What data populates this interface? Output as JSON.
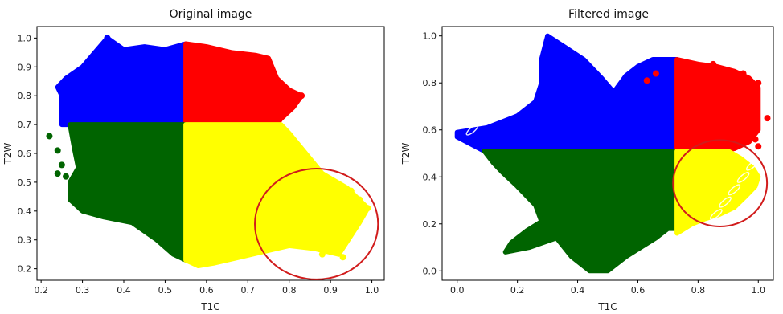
{
  "chart_data": [
    {
      "type": "scatter",
      "title": "Original image",
      "xlabel": "T1C",
      "ylabel": "T2W",
      "xlim": [
        0.19,
        1.03
      ],
      "ylim": [
        0.16,
        1.04
      ],
      "xticks": [
        "0.2",
        "0.3",
        "0.4",
        "0.5",
        "0.6",
        "0.7",
        "0.8",
        "0.9",
        "1.0"
      ],
      "yticks": [
        "0.2",
        "0.3",
        "0.4",
        "0.5",
        "0.6",
        "0.7",
        "0.8",
        "0.9",
        "1.0"
      ],
      "grid": false,
      "colors": {
        "blue": "#0000ff",
        "red": "#ff0000",
        "green": "#006400",
        "yellow": "#ffff00",
        "highlight": "#d11c1c"
      },
      "regions": [
        {
          "color": "blue",
          "outline": [
            [
              0.25,
              0.7
            ],
            [
              0.25,
              0.8
            ],
            [
              0.24,
              0.83
            ],
            [
              0.26,
              0.86
            ],
            [
              0.3,
              0.9
            ],
            [
              0.33,
              0.95
            ],
            [
              0.36,
              1.0
            ],
            [
              0.4,
              0.96
            ],
            [
              0.45,
              0.97
            ],
            [
              0.5,
              0.96
            ],
            [
              0.55,
              0.98
            ],
            [
              0.55,
              0.7
            ]
          ]
        },
        {
          "color": "red",
          "outline": [
            [
              0.55,
              0.7
            ],
            [
              0.55,
              0.98
            ],
            [
              0.6,
              0.97
            ],
            [
              0.66,
              0.95
            ],
            [
              0.72,
              0.94
            ],
            [
              0.75,
              0.93
            ],
            [
              0.77,
              0.86
            ],
            [
              0.8,
              0.82
            ],
            [
              0.83,
              0.8
            ],
            [
              0.81,
              0.76
            ],
            [
              0.78,
              0.72
            ],
            [
              0.77,
              0.7
            ]
          ]
        },
        {
          "color": "green",
          "outline": [
            [
              0.27,
              0.7
            ],
            [
              0.28,
              0.62
            ],
            [
              0.29,
              0.55
            ],
            [
              0.27,
              0.5
            ],
            [
              0.27,
              0.44
            ],
            [
              0.3,
              0.4
            ],
            [
              0.35,
              0.38
            ],
            [
              0.42,
              0.36
            ],
            [
              0.48,
              0.3
            ],
            [
              0.52,
              0.25
            ],
            [
              0.55,
              0.23
            ],
            [
              0.55,
              0.7
            ]
          ]
        },
        {
          "color": "yellow",
          "outline": [
            [
              0.55,
              0.7
            ],
            [
              0.55,
              0.23
            ],
            [
              0.58,
              0.21
            ],
            [
              0.62,
              0.22
            ],
            [
              0.68,
              0.24
            ],
            [
              0.74,
              0.26
            ],
            [
              0.8,
              0.28
            ],
            [
              0.86,
              0.27
            ],
            [
              0.92,
              0.25
            ],
            [
              0.97,
              0.36
            ],
            [
              0.99,
              0.41
            ],
            [
              0.94,
              0.48
            ],
            [
              0.88,
              0.53
            ],
            [
              0.84,
              0.6
            ],
            [
              0.8,
              0.67
            ],
            [
              0.78,
              0.7
            ]
          ]
        }
      ],
      "scatter_points": [
        {
          "color": "green",
          "x": 0.22,
          "y": 0.66
        },
        {
          "color": "green",
          "x": 0.24,
          "y": 0.61
        },
        {
          "color": "green",
          "x": 0.25,
          "y": 0.56
        },
        {
          "color": "green",
          "x": 0.24,
          "y": 0.53
        },
        {
          "color": "green",
          "x": 0.26,
          "y": 0.52
        },
        {
          "color": "blue",
          "x": 0.36,
          "y": 1.0
        },
        {
          "color": "yellow",
          "x": 0.95,
          "y": 0.47
        },
        {
          "color": "yellow",
          "x": 0.97,
          "y": 0.44
        },
        {
          "color": "yellow",
          "x": 0.99,
          "y": 0.41
        },
        {
          "color": "yellow",
          "x": 0.93,
          "y": 0.24
        },
        {
          "color": "yellow",
          "x": 0.88,
          "y": 0.25
        },
        {
          "color": "yellow",
          "x": 0.86,
          "y": 0.33
        },
        {
          "color": "yellow",
          "x": 0.9,
          "y": 0.4
        },
        {
          "color": "yellow",
          "x": 0.84,
          "y": 0.38
        },
        {
          "color": "red",
          "x": 0.83,
          "y": 0.8
        }
      ],
      "annotation": {
        "type": "ellipse",
        "center": [
          0.866,
          0.355
        ],
        "rx": 0.149,
        "ry": 0.192,
        "color": "highlight"
      }
    },
    {
      "type": "scatter",
      "title": "Filtered image",
      "xlabel": "T1C",
      "ylabel": "T2W",
      "xlim": [
        -0.05,
        1.05
      ],
      "ylim": [
        -0.04,
        1.04
      ],
      "xticks": [
        "0.0",
        "0.2",
        "0.4",
        "0.6",
        "0.8",
        "1.0"
      ],
      "yticks": [
        "0.0",
        "0.2",
        "0.4",
        "0.6",
        "0.8",
        "1.0"
      ],
      "grid": false,
      "colors": {
        "blue": "#0000ff",
        "red": "#ff0000",
        "green": "#006400",
        "yellow": "#ffff00",
        "highlight": "#d11c1c"
      },
      "regions": [
        {
          "color": "blue",
          "outline": [
            [
              0.09,
              0.51
            ],
            [
              0.0,
              0.57
            ],
            [
              0.0,
              0.59
            ],
            [
              0.1,
              0.61
            ],
            [
              0.2,
              0.66
            ],
            [
              0.26,
              0.72
            ],
            [
              0.28,
              0.8
            ],
            [
              0.28,
              0.9
            ],
            [
              0.3,
              1.0
            ],
            [
              0.36,
              0.95
            ],
            [
              0.42,
              0.9
            ],
            [
              0.48,
              0.82
            ],
            [
              0.52,
              0.76
            ],
            [
              0.56,
              0.83
            ],
            [
              0.6,
              0.87
            ],
            [
              0.65,
              0.9
            ],
            [
              0.73,
              0.9
            ],
            [
              0.73,
              0.51
            ]
          ]
        },
        {
          "color": "red",
          "outline": [
            [
              0.73,
              0.51
            ],
            [
              0.73,
              0.9
            ],
            [
              0.8,
              0.88
            ],
            [
              0.86,
              0.87
            ],
            [
              0.92,
              0.85
            ],
            [
              0.97,
              0.82
            ],
            [
              1.0,
              0.78
            ],
            [
              1.0,
              0.6
            ],
            [
              0.97,
              0.55
            ],
            [
              0.92,
              0.52
            ],
            [
              0.88,
              0.51
            ]
          ]
        },
        {
          "color": "green",
          "outline": [
            [
              0.09,
              0.51
            ],
            [
              0.12,
              0.46
            ],
            [
              0.15,
              0.42
            ],
            [
              0.2,
              0.36
            ],
            [
              0.26,
              0.28
            ],
            [
              0.28,
              0.21
            ],
            [
              0.23,
              0.17
            ],
            [
              0.18,
              0.12
            ],
            [
              0.16,
              0.08
            ],
            [
              0.24,
              0.1
            ],
            [
              0.33,
              0.14
            ],
            [
              0.38,
              0.06
            ],
            [
              0.44,
              0.0
            ],
            [
              0.5,
              0.0
            ],
            [
              0.56,
              0.06
            ],
            [
              0.61,
              0.1
            ],
            [
              0.66,
              0.14
            ],
            [
              0.7,
              0.18
            ],
            [
              0.73,
              0.18
            ],
            [
              0.73,
              0.51
            ]
          ]
        },
        {
          "color": "yellow",
          "outline": [
            [
              0.73,
              0.51
            ],
            [
              0.73,
              0.16
            ],
            [
              0.78,
              0.2
            ],
            [
              0.82,
              0.22
            ],
            [
              0.87,
              0.24
            ],
            [
              0.92,
              0.27
            ],
            [
              0.96,
              0.32
            ],
            [
              0.99,
              0.36
            ],
            [
              1.0,
              0.4
            ],
            [
              0.98,
              0.44
            ],
            [
              0.94,
              0.48
            ],
            [
              0.9,
              0.51
            ]
          ]
        }
      ],
      "scatter_points": [
        {
          "color": "red",
          "x": 0.63,
          "y": 0.81
        },
        {
          "color": "red",
          "x": 0.66,
          "y": 0.84
        },
        {
          "color": "red",
          "x": 0.85,
          "y": 0.88
        },
        {
          "color": "red",
          "x": 0.95,
          "y": 0.84
        },
        {
          "color": "red",
          "x": 1.0,
          "y": 0.8
        },
        {
          "color": "red",
          "x": 1.03,
          "y": 0.65
        },
        {
          "color": "red",
          "x": 0.99,
          "y": 0.56
        },
        {
          "color": "red",
          "x": 1.0,
          "y": 0.53
        },
        {
          "color": "red",
          "x": 0.93,
          "y": 0.6
        }
      ],
      "stripes": [
        {
          "color": "blue",
          "from": [
            0.05,
            0.6
          ],
          "to": [
            0.27,
            0.98
          ],
          "count": 10
        },
        {
          "color": "yellow",
          "from": [
            0.86,
            0.24
          ],
          "to": [
            0.98,
            0.45
          ],
          "count": 5
        }
      ],
      "annotation": {
        "type": "ellipse",
        "center": [
          0.873,
          0.373
        ],
        "rx": 0.156,
        "ry": 0.184,
        "color": "highlight"
      }
    }
  ]
}
